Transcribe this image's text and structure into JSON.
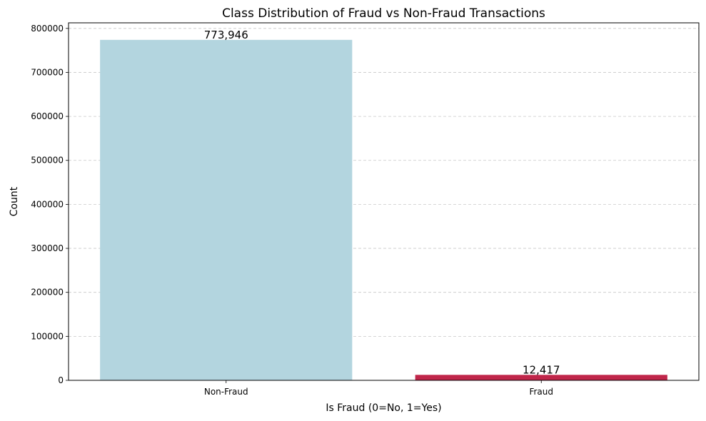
{
  "chart_data": {
    "type": "bar",
    "title": "Class Distribution of Fraud vs Non-Fraud Transactions",
    "xlabel": "Is Fraud (0=No, 1=Yes)",
    "ylabel": "Count",
    "categories": [
      "Non-Fraud",
      "Fraud"
    ],
    "values": [
      773946,
      12417
    ],
    "data_labels": [
      "773,946",
      "12,417"
    ],
    "colors": [
      "#b3d5df",
      "#c0264a"
    ],
    "ylim": [
      0,
      812643
    ],
    "yticks": [
      0,
      100000,
      200000,
      300000,
      400000,
      500000,
      600000,
      700000,
      800000
    ],
    "ytick_labels": [
      "0",
      "100000",
      "200000",
      "300000",
      "400000",
      "500000",
      "600000",
      "700000",
      "800000"
    ],
    "grid": "y-dashed",
    "legend": "none"
  }
}
